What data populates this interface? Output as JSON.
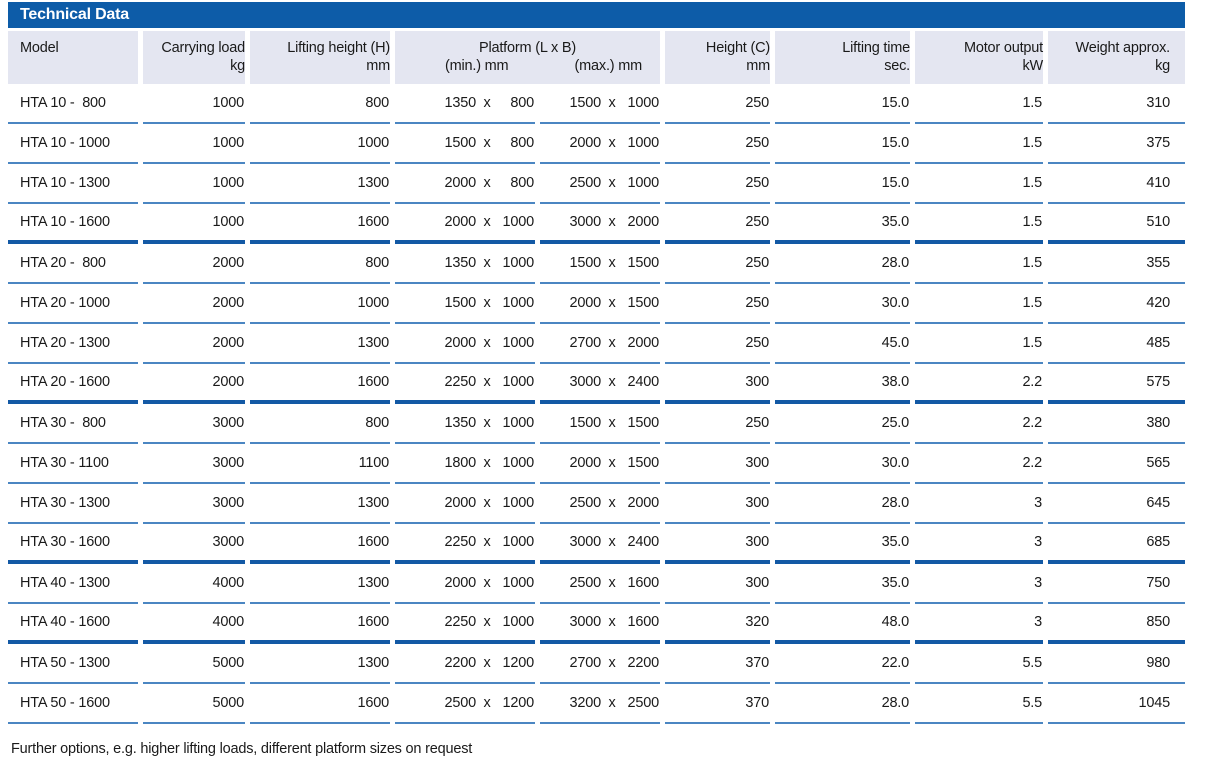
{
  "title": "Technical Data",
  "columns": {
    "model": {
      "label": "Model"
    },
    "carrying_load": {
      "label": "Carrying load",
      "unit": "kg"
    },
    "lifting_height": {
      "label": "Lifting height (H)",
      "unit": "mm"
    },
    "platform": {
      "label": "Platform (L x B)",
      "min_unit": "(min.) mm",
      "max_unit": "(max.) mm",
      "separator": "x"
    },
    "height_c": {
      "label": "Height (C)",
      "unit": "mm"
    },
    "lifting_time": {
      "label": "Lifting time",
      "unit": "sec."
    },
    "motor_output": {
      "label": "Motor output",
      "unit": "kW"
    },
    "weight": {
      "label": "Weight approx.",
      "unit": "kg"
    }
  },
  "rows": [
    {
      "model": "HTA 10 -  800",
      "carrying_load": "1000",
      "lifting_height": "800",
      "platform_min_l": "1350",
      "platform_min_b": "800",
      "platform_max_l": "1500",
      "platform_max_b": "1000",
      "height_c": "250",
      "lifting_time": "15.0",
      "motor_output": "1.5",
      "weight": "310",
      "group_end": false
    },
    {
      "model": "HTA 10 - 1000",
      "carrying_load": "1000",
      "lifting_height": "1000",
      "platform_min_l": "1500",
      "platform_min_b": "800",
      "platform_max_l": "2000",
      "platform_max_b": "1000",
      "height_c": "250",
      "lifting_time": "15.0",
      "motor_output": "1.5",
      "weight": "375",
      "group_end": false
    },
    {
      "model": "HTA 10 - 1300",
      "carrying_load": "1000",
      "lifting_height": "1300",
      "platform_min_l": "2000",
      "platform_min_b": "800",
      "platform_max_l": "2500",
      "platform_max_b": "1000",
      "height_c": "250",
      "lifting_time": "15.0",
      "motor_output": "1.5",
      "weight": "410",
      "group_end": false
    },
    {
      "model": "HTA 10 - 1600",
      "carrying_load": "1000",
      "lifting_height": "1600",
      "platform_min_l": "2000",
      "platform_min_b": "1000",
      "platform_max_l": "3000",
      "platform_max_b": "2000",
      "height_c": "250",
      "lifting_time": "35.0",
      "motor_output": "1.5",
      "weight": "510",
      "group_end": true
    },
    {
      "model": "HTA 20 -  800",
      "carrying_load": "2000",
      "lifting_height": "800",
      "platform_min_l": "1350",
      "platform_min_b": "1000",
      "platform_max_l": "1500",
      "platform_max_b": "1500",
      "height_c": "250",
      "lifting_time": "28.0",
      "motor_output": "1.5",
      "weight": "355",
      "group_end": false
    },
    {
      "model": "HTA 20 - 1000",
      "carrying_load": "2000",
      "lifting_height": "1000",
      "platform_min_l": "1500",
      "platform_min_b": "1000",
      "platform_max_l": "2000",
      "platform_max_b": "1500",
      "height_c": "250",
      "lifting_time": "30.0",
      "motor_output": "1.5",
      "weight": "420",
      "group_end": false
    },
    {
      "model": "HTA 20 - 1300",
      "carrying_load": "2000",
      "lifting_height": "1300",
      "platform_min_l": "2000",
      "platform_min_b": "1000",
      "platform_max_l": "2700",
      "platform_max_b": "2000",
      "height_c": "250",
      "lifting_time": "45.0",
      "motor_output": "1.5",
      "weight": "485",
      "group_end": false
    },
    {
      "model": "HTA 20 - 1600",
      "carrying_load": "2000",
      "lifting_height": "1600",
      "platform_min_l": "2250",
      "platform_min_b": "1000",
      "platform_max_l": "3000",
      "platform_max_b": "2400",
      "height_c": "300",
      "lifting_time": "38.0",
      "motor_output": "2.2",
      "weight": "575",
      "group_end": true
    },
    {
      "model": "HTA 30 -  800",
      "carrying_load": "3000",
      "lifting_height": "800",
      "platform_min_l": "1350",
      "platform_min_b": "1000",
      "platform_max_l": "1500",
      "platform_max_b": "1500",
      "height_c": "250",
      "lifting_time": "25.0",
      "motor_output": "2.2",
      "weight": "380",
      "group_end": false
    },
    {
      "model": "HTA 30 - 1100",
      "carrying_load": "3000",
      "lifting_height": "1100",
      "platform_min_l": "1800",
      "platform_min_b": "1000",
      "platform_max_l": "2000",
      "platform_max_b": "1500",
      "height_c": "300",
      "lifting_time": "30.0",
      "motor_output": "2.2",
      "weight": "565",
      "group_end": false
    },
    {
      "model": "HTA 30 - 1300",
      "carrying_load": "3000",
      "lifting_height": "1300",
      "platform_min_l": "2000",
      "platform_min_b": "1000",
      "platform_max_l": "2500",
      "platform_max_b": "2000",
      "height_c": "300",
      "lifting_time": "28.0",
      "motor_output": "3",
      "weight": "645",
      "group_end": false
    },
    {
      "model": "HTA 30 - 1600",
      "carrying_load": "3000",
      "lifting_height": "1600",
      "platform_min_l": "2250",
      "platform_min_b": "1000",
      "platform_max_l": "3000",
      "platform_max_b": "2400",
      "height_c": "300",
      "lifting_time": "35.0",
      "motor_output": "3",
      "weight": "685",
      "group_end": true
    },
    {
      "model": "HTA 40 - 1300",
      "carrying_load": "4000",
      "lifting_height": "1300",
      "platform_min_l": "2000",
      "platform_min_b": "1000",
      "platform_max_l": "2500",
      "platform_max_b": "1600",
      "height_c": "300",
      "lifting_time": "35.0",
      "motor_output": "3",
      "weight": "750",
      "group_end": false
    },
    {
      "model": "HTA 40 - 1600",
      "carrying_load": "4000",
      "lifting_height": "1600",
      "platform_min_l": "2250",
      "platform_min_b": "1000",
      "platform_max_l": "3000",
      "platform_max_b": "1600",
      "height_c": "320",
      "lifting_time": "48.0",
      "motor_output": "3",
      "weight": "850",
      "group_end": true
    },
    {
      "model": "HTA 50 - 1300",
      "carrying_load": "5000",
      "lifting_height": "1300",
      "platform_min_l": "2200",
      "platform_min_b": "1200",
      "platform_max_l": "2700",
      "platform_max_b": "2200",
      "height_c": "370",
      "lifting_time": "22.0",
      "motor_output": "5.5",
      "weight": "980",
      "group_end": false
    },
    {
      "model": "HTA 50 - 1600",
      "carrying_load": "5000",
      "lifting_height": "1600",
      "platform_min_l": "2500",
      "platform_min_b": "1200",
      "platform_max_l": "3200",
      "platform_max_b": "2500",
      "height_c": "370",
      "lifting_time": "28.0",
      "motor_output": "5.5",
      "weight": "1045",
      "group_end": false
    }
  ],
  "footer_note": "Further options, e.g. higher lifting loads, different platform sizes on request",
  "colors": {
    "title_bar_bg": "#0d5ca8",
    "title_text": "#ffffff",
    "header_bg": "#e4e6f1",
    "thin_line": "#4b86c2",
    "thick_line": "#1359a5"
  }
}
